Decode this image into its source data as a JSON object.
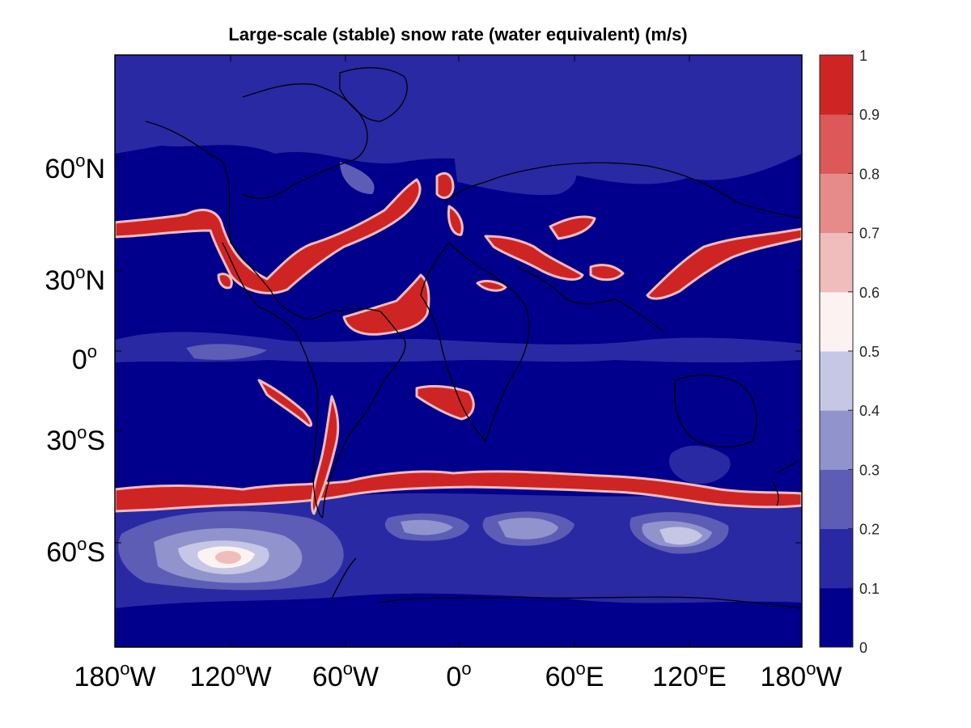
{
  "chart_data": {
    "type": "heatmap",
    "title": "Large-scale (stable) snow rate (water equivalent) (m/s)",
    "projection": "equirectangular map with coastlines",
    "x_ticks": [
      "180oW",
      "120oW",
      "60oW",
      "0o",
      "60oE",
      "120oE",
      "180oW"
    ],
    "y_ticks": [
      "60oN",
      "30oN",
      "0o",
      "30oS",
      "60oS"
    ],
    "x_range_deg": [
      -180,
      180
    ],
    "y_range_deg": [
      -90,
      90
    ],
    "colorbar": {
      "ticks": [
        "1",
        "0.9",
        "0.8",
        "0.7",
        "0.6",
        "0.5",
        "0.4",
        "0.3",
        "0.2",
        "0.1",
        "0"
      ],
      "levels": [
        0,
        0.1,
        0.2,
        0.3,
        0.4,
        0.5,
        0.6,
        0.7,
        0.8,
        0.9,
        1
      ],
      "colors": [
        "#00008c",
        "#2929a3",
        "#5d5db6",
        "#9193cc",
        "#c6c6e5",
        "#fcf2f2",
        "#f0bcbc",
        "#e78a8a",
        "#dd5858",
        "#cf2424"
      ]
    },
    "features": [
      {
        "name": "southern hemisphere storm-track band",
        "lat": -47,
        "lon_range": [
          -180,
          180
        ],
        "value": 1.0
      },
      {
        "name": "north pacific band",
        "lon_range": [
          145,
          180
        ],
        "lat_range": [
          30,
          45
        ],
        "value": 1.0
      },
      {
        "name": "north atlantic band",
        "lon_range": [
          -80,
          -20
        ],
        "lat_range": [
          30,
          55
        ],
        "value": 1.0
      },
      {
        "name": "southeast pacific max",
        "lon": -120,
        "lat": -62,
        "value": 0.65
      },
      {
        "name": "indian ocean southern max",
        "lon": 115,
        "lat": -58,
        "value": 0.45
      }
    ]
  },
  "ui": {
    "plot_bg": "#00008c",
    "axis_color": "#000000"
  }
}
